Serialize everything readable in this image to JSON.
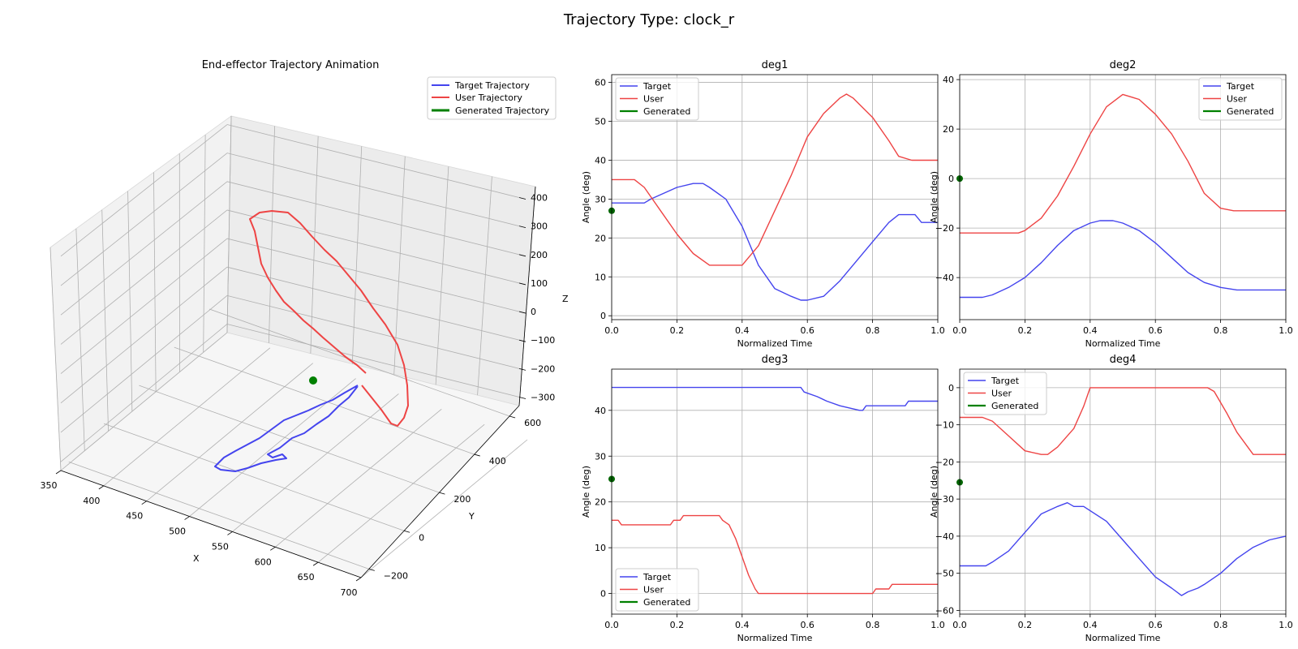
{
  "suptitle": "Trajectory Type: clock_r",
  "colors": {
    "target": "#4444ee",
    "user": "#ee4444",
    "generated": "#008000",
    "marker": "#006400"
  },
  "chart_data": [
    {
      "type": "line3d",
      "title": "End-effector Trajectory Animation",
      "xlabel": "X",
      "ylabel": "Y",
      "zlabel": "Z",
      "xlim": [
        350,
        700
      ],
      "ylim": [
        -250,
        650
      ],
      "zlim": [
        -330,
        430
      ],
      "xticks": [
        "350",
        "400",
        "450",
        "500",
        "550",
        "600",
        "650",
        "700"
      ],
      "yticks": [
        "−200",
        "0",
        "200",
        "400",
        "600"
      ],
      "zticks": [
        "−300",
        "−200",
        "−100",
        "0",
        "100",
        "200",
        "300",
        "400"
      ],
      "legend": [
        "Target Trajectory",
        "User Trajectory",
        "Generated Trajectory"
      ],
      "generated_point": [
        500,
        0,
        0
      ],
      "series": [
        {
          "name": "Target Trajectory",
          "points": [
            [
              605,
              480,
              -270
            ],
            [
              600,
              465,
              -255
            ],
            [
              590,
              440,
              -230
            ],
            [
              575,
              410,
              -200
            ],
            [
              555,
              380,
              -175
            ],
            [
              530,
              340,
              -155
            ],
            [
              505,
              300,
              -140
            ],
            [
              485,
              255,
              -130
            ],
            [
              470,
              215,
              -135
            ],
            [
              460,
              175,
              -155
            ],
            [
              455,
              150,
              -175
            ],
            [
              460,
              135,
              -200
            ],
            [
              475,
              140,
              -220
            ],
            [
              495,
              160,
              -225
            ],
            [
              520,
              190,
              -215
            ],
            [
              545,
              235,
              -200
            ],
            [
              570,
              285,
              -190
            ],
            [
              590,
              340,
              -210
            ],
            [
              602,
              400,
              -250
            ],
            [
              608,
              450,
              -275
            ]
          ]
        },
        {
          "name": "User Trajectory",
          "points": [
            [
              520,
              150,
              -110
            ],
            [
              505,
              120,
              -60
            ],
            [
              490,
              90,
              0
            ],
            [
              478,
              60,
              60
            ],
            [
              465,
              30,
              130
            ],
            [
              455,
              10,
              200
            ],
            [
              450,
              0,
              260
            ],
            [
              452,
              10,
              320
            ],
            [
              462,
              40,
              360
            ],
            [
              480,
              80,
              385
            ],
            [
              505,
              140,
              395
            ],
            [
              535,
              210,
              380
            ],
            [
              565,
              285,
              345
            ],
            [
              595,
              360,
              295
            ],
            [
              620,
              430,
              235
            ],
            [
              640,
              480,
              170
            ],
            [
              652,
              520,
              110
            ],
            [
              655,
              560,
              50
            ],
            [
              650,
              590,
              -5
            ],
            [
              640,
              605,
              -40
            ],
            [
              630,
              600,
              -60
            ],
            [
              620,
              585,
              -70
            ]
          ]
        }
      ]
    },
    {
      "type": "line",
      "title": "deg1",
      "xlabel": "Normalized Time",
      "ylabel": "Angle (deg)",
      "xlim": [
        0,
        1
      ],
      "ylim": [
        -1,
        62
      ],
      "xticks": [
        "0.0",
        "0.2",
        "0.4",
        "0.6",
        "0.8",
        "1.0"
      ],
      "yticks": [
        "0",
        "10",
        "20",
        "30",
        "40",
        "50",
        "60"
      ],
      "legend": [
        "Target",
        "User",
        "Generated"
      ],
      "legend_loc": "upper left",
      "generated_value": 27,
      "series": [
        {
          "name": "Target",
          "x": [
            0,
            0.1,
            0.12,
            0.2,
            0.25,
            0.28,
            0.3,
            0.35,
            0.4,
            0.45,
            0.5,
            0.55,
            0.58,
            0.6,
            0.65,
            0.7,
            0.75,
            0.8,
            0.85,
            0.88,
            0.93,
            0.95,
            1.0
          ],
          "y": [
            29,
            29,
            30,
            33,
            34,
            34,
            33,
            30,
            23,
            13,
            7,
            5,
            4,
            4,
            5,
            9,
            14,
            19,
            24,
            26,
            26,
            24,
            24
          ]
        },
        {
          "name": "User",
          "x": [
            0,
            0.07,
            0.1,
            0.15,
            0.2,
            0.25,
            0.3,
            0.35,
            0.4,
            0.45,
            0.5,
            0.55,
            0.6,
            0.65,
            0.7,
            0.72,
            0.74,
            0.8,
            0.85,
            0.88,
            0.92,
            1.0
          ],
          "y": [
            35,
            35,
            33,
            27,
            21,
            16,
            13,
            13,
            13,
            18,
            27,
            36,
            46,
            52,
            56,
            57,
            56,
            51,
            45,
            41,
            40,
            40
          ]
        },
        {
          "name": "Generated",
          "x": [],
          "y": []
        }
      ]
    },
    {
      "type": "line",
      "title": "deg2",
      "xlabel": "Normalized Time",
      "ylabel": "Angle (deg)",
      "xlim": [
        0,
        1
      ],
      "ylim": [
        -57,
        42
      ],
      "xticks": [
        "0.0",
        "0.2",
        "0.4",
        "0.6",
        "0.8",
        "1.0"
      ],
      "yticks": [
        "−40",
        "−20",
        "0",
        "20",
        "40"
      ],
      "legend": [
        "Target",
        "User",
        "Generated"
      ],
      "legend_loc": "upper right",
      "generated_value": 0,
      "series": [
        {
          "name": "Target",
          "x": [
            0,
            0.07,
            0.1,
            0.15,
            0.2,
            0.25,
            0.3,
            0.35,
            0.4,
            0.43,
            0.47,
            0.5,
            0.55,
            0.6,
            0.65,
            0.7,
            0.75,
            0.8,
            0.85,
            1.0
          ],
          "y": [
            -48,
            -48,
            -47,
            -44,
            -40,
            -34,
            -27,
            -21,
            -18,
            -17,
            -17,
            -18,
            -21,
            -26,
            -32,
            -38,
            -42,
            -44,
            -45,
            -45
          ]
        },
        {
          "name": "User",
          "x": [
            0,
            0.18,
            0.2,
            0.25,
            0.3,
            0.35,
            0.4,
            0.45,
            0.5,
            0.55,
            0.6,
            0.65,
            0.7,
            0.75,
            0.8,
            0.84,
            0.87,
            1.0
          ],
          "y": [
            -22,
            -22,
            -21,
            -16,
            -7,
            5,
            18,
            29,
            34,
            32,
            26,
            18,
            7,
            -6,
            -12,
            -13,
            -13,
            -13
          ]
        },
        {
          "name": "Generated",
          "x": [],
          "y": []
        }
      ]
    },
    {
      "type": "line",
      "title": "deg3",
      "xlabel": "Normalized Time",
      "ylabel": "Angle (deg)",
      "xlim": [
        0,
        1
      ],
      "ylim": [
        -4.5,
        49
      ],
      "xticks": [
        "0.0",
        "0.2",
        "0.4",
        "0.6",
        "0.8",
        "1.0"
      ],
      "yticks": [
        "0",
        "10",
        "20",
        "30",
        "40"
      ],
      "legend": [
        "Target",
        "User",
        "Generated"
      ],
      "legend_loc": "lower left",
      "generated_value": 25,
      "series": [
        {
          "name": "Target",
          "x": [
            0,
            0.58,
            0.59,
            0.63,
            0.66,
            0.7,
            0.76,
            0.77,
            0.78,
            0.8,
            0.9,
            0.91,
            1.0
          ],
          "y": [
            45,
            45,
            44,
            43,
            42,
            41,
            40,
            40,
            41,
            41,
            41,
            42,
            42
          ]
        },
        {
          "name": "User",
          "x": [
            0,
            0.02,
            0.03,
            0.18,
            0.19,
            0.21,
            0.22,
            0.33,
            0.34,
            0.36,
            0.38,
            0.4,
            0.42,
            0.44,
            0.45,
            0.8,
            0.81,
            0.85,
            0.86,
            1.0
          ],
          "y": [
            16,
            16,
            15,
            15,
            16,
            16,
            17,
            17,
            16,
            15,
            12,
            8,
            4,
            1,
            0,
            0,
            1,
            1,
            2,
            2
          ]
        },
        {
          "name": "Generated",
          "x": [],
          "y": []
        }
      ]
    },
    {
      "type": "line",
      "title": "deg4",
      "xlabel": "Normalized Time",
      "ylabel": "Angle (deg)",
      "xlim": [
        0,
        1
      ],
      "ylim": [
        -61,
        5
      ],
      "xticks": [
        "0.0",
        "0.2",
        "0.4",
        "0.6",
        "0.8",
        "1.0"
      ],
      "yticks": [
        "0",
        "−10",
        "−20",
        "−30",
        "−40",
        "−50",
        "−60"
      ],
      "legend": [
        "Target",
        "User",
        "Generated"
      ],
      "legend_loc": "upper left",
      "generated_value": -25.5,
      "series": [
        {
          "name": "Target",
          "x": [
            0,
            0.08,
            0.1,
            0.15,
            0.2,
            0.25,
            0.3,
            0.33,
            0.35,
            0.38,
            0.45,
            0.5,
            0.55,
            0.6,
            0.65,
            0.68,
            0.7,
            0.73,
            0.75,
            0.8,
            0.85,
            0.9,
            0.95,
            1.0
          ],
          "y": [
            -48,
            -48,
            -47,
            -44,
            -39,
            -34,
            -32,
            -31,
            -32,
            -32,
            -36,
            -41,
            -46,
            -51,
            -54,
            -56,
            -55,
            -54,
            -53,
            -50,
            -46,
            -43,
            -41,
            -40
          ]
        },
        {
          "name": "User",
          "x": [
            0,
            0.07,
            0.1,
            0.15,
            0.2,
            0.25,
            0.27,
            0.3,
            0.35,
            0.38,
            0.4,
            0.76,
            0.78,
            0.82,
            0.85,
            0.9,
            1.0
          ],
          "y": [
            -8,
            -8,
            -9,
            -13,
            -17,
            -18,
            -18,
            -16,
            -11,
            -5,
            0,
            0,
            -1,
            -7,
            -12,
            -18,
            -18
          ]
        },
        {
          "name": "Generated",
          "x": [],
          "y": []
        }
      ]
    }
  ]
}
